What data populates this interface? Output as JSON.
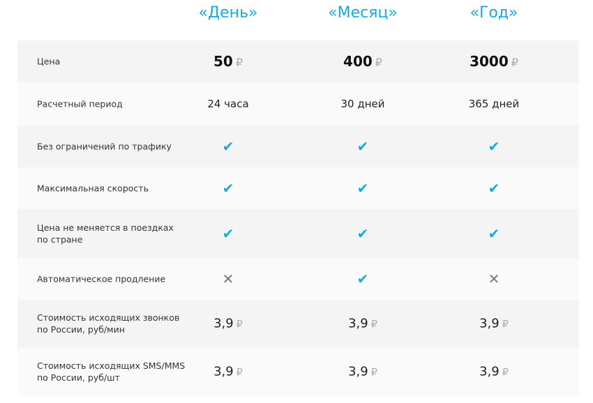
{
  "plans": [
    "«День»",
    "«Месяц»",
    "«Год»"
  ],
  "currency_symbol": "₽",
  "colors": {
    "accent": "#1aa8e0",
    "row_dark": "#f4f4f4",
    "row_light": "#fafafa"
  },
  "rows": [
    {
      "label": "Цена",
      "type": "price",
      "values": [
        "50",
        "400",
        "3000"
      ]
    },
    {
      "label": "Расчетный период",
      "type": "text",
      "values": [
        "24 часа",
        "30 дней",
        "365 дней"
      ]
    },
    {
      "label": "Без ограничений по трафику",
      "type": "bool",
      "values": [
        true,
        true,
        true
      ]
    },
    {
      "label": "Максимальная скорость",
      "type": "bool",
      "values": [
        true,
        true,
        true
      ]
    },
    {
      "label": "Цена не меняется в поездках\nпо стране",
      "type": "bool",
      "values": [
        true,
        true,
        true
      ]
    },
    {
      "label": "Автоматическое продление",
      "type": "bool",
      "values": [
        false,
        true,
        false
      ]
    },
    {
      "label": "Стоимость исходящих звонков\nпо России, руб/мин",
      "type": "money",
      "values": [
        "3,9",
        "3,9",
        "3,9"
      ]
    },
    {
      "label": "Стоимость исходящих SMS/MMS\nпо России, руб/шт",
      "type": "money",
      "values": [
        "3,9",
        "3,9",
        "3,9"
      ]
    }
  ]
}
